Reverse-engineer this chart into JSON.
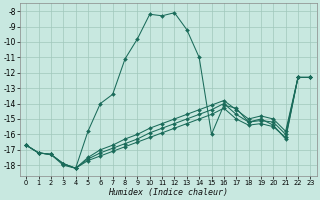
{
  "xlabel": "Humidex (Indice chaleur)",
  "background_color": "#c8e8e0",
  "grid_color": "#a0c8bc",
  "line_color": "#1a6b5a",
  "xlim": [
    -0.5,
    23.5
  ],
  "ylim": [
    -18.7,
    -7.5
  ],
  "yticks": [
    -8,
    -9,
    -10,
    -11,
    -12,
    -13,
    -14,
    -15,
    -16,
    -17,
    -18
  ],
  "xticks": [
    0,
    1,
    2,
    3,
    4,
    5,
    6,
    7,
    8,
    9,
    10,
    11,
    12,
    13,
    14,
    15,
    16,
    17,
    18,
    19,
    20,
    21,
    22,
    23
  ],
  "series": [
    {
      "x": [
        0,
        1,
        2,
        3,
        4,
        5,
        6,
        7,
        8,
        9,
        10,
        11,
        12,
        13,
        14,
        15,
        16,
        17,
        18,
        19,
        20,
        21,
        22,
        23
      ],
      "y": [
        -16.7,
        -17.2,
        -17.3,
        -18.0,
        -18.2,
        -15.8,
        -14.0,
        -13.4,
        -11.1,
        -9.8,
        -8.2,
        -8.3,
        -8.1,
        -9.2,
        -11.0,
        -16.0,
        -14.1,
        -14.3,
        -15.2,
        -15.0,
        -15.4,
        -16.3,
        -12.3,
        -12.3
      ]
    },
    {
      "x": [
        0,
        1,
        2,
        3,
        4,
        5,
        6,
        7,
        8,
        9,
        10,
        11,
        12,
        13,
        14,
        15,
        16,
        17,
        18,
        19,
        20,
        21,
        22,
        23
      ],
      "y": [
        -16.7,
        -17.2,
        -17.3,
        -17.9,
        -18.2,
        -17.5,
        -17.0,
        -16.7,
        -16.3,
        -16.0,
        -15.6,
        -15.3,
        -15.0,
        -14.7,
        -14.4,
        -14.1,
        -13.8,
        -14.4,
        -15.0,
        -14.8,
        -15.0,
        -15.8,
        -12.3,
        -12.3
      ]
    },
    {
      "x": [
        0,
        1,
        2,
        3,
        4,
        5,
        6,
        7,
        8,
        9,
        10,
        11,
        12,
        13,
        14,
        15,
        16,
        17,
        18,
        19,
        20,
        21,
        22,
        23
      ],
      "y": [
        -16.7,
        -17.2,
        -17.3,
        -17.9,
        -18.2,
        -17.6,
        -17.2,
        -16.9,
        -16.6,
        -16.3,
        -15.9,
        -15.6,
        -15.3,
        -15.0,
        -14.7,
        -14.4,
        -14.0,
        -14.7,
        -15.2,
        -15.1,
        -15.2,
        -16.0,
        -12.3,
        -12.3
      ]
    },
    {
      "x": [
        0,
        1,
        2,
        3,
        4,
        5,
        6,
        7,
        8,
        9,
        10,
        11,
        12,
        13,
        14,
        15,
        16,
        17,
        18,
        19,
        20,
        21,
        22,
        23
      ],
      "y": [
        -16.7,
        -17.2,
        -17.3,
        -17.9,
        -18.2,
        -17.7,
        -17.4,
        -17.1,
        -16.8,
        -16.5,
        -16.2,
        -15.9,
        -15.6,
        -15.3,
        -15.0,
        -14.7,
        -14.3,
        -15.0,
        -15.4,
        -15.3,
        -15.5,
        -16.2,
        -12.3,
        -12.3
      ]
    }
  ]
}
